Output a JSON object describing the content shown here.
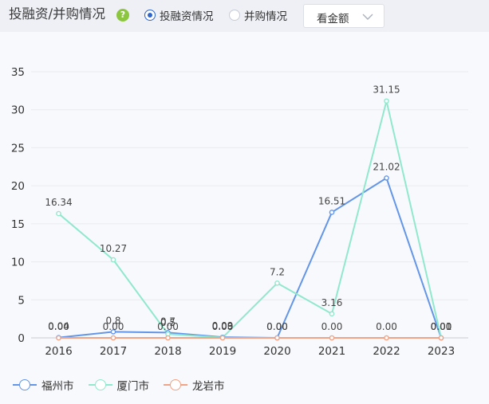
{
  "header": {
    "title": "投融资/并购情况",
    "help_icon": "question-circle-icon",
    "radios": [
      {
        "label": "投融资情况",
        "checked": true
      },
      {
        "label": "并购情况",
        "checked": false
      }
    ],
    "select": {
      "value": "看金额",
      "icon": "chevron-down-icon"
    }
  },
  "colors": {
    "福州市": "#6396e8",
    "厦门市": "#90e8cd",
    "龙岩市": "#f0a386"
  },
  "chart_data": {
    "type": "line",
    "categories": [
      "2016",
      "2017",
      "2018",
      "2019",
      "2020",
      "2021",
      "2022",
      "2023"
    ],
    "y_ticks": [
      "0",
      "5",
      "10",
      "15",
      "20",
      "25",
      "30",
      "35"
    ],
    "ylim": [
      0,
      35
    ],
    "grid": true,
    "legend_position": "bottom-left",
    "series": [
      {
        "name": "福州市",
        "values": [
          0.04,
          0.8,
          0.7,
          0.09,
          0,
          16.51,
          21.02,
          0
        ],
        "labels": [
          "0.04",
          "0.8",
          "0.7",
          "0.09",
          "0.00",
          "16.51",
          "21.02",
          "0.00"
        ]
      },
      {
        "name": "厦门市",
        "values": [
          16.34,
          10.27,
          0.5,
          0.03,
          7.2,
          3.16,
          31.15,
          0.01
        ],
        "labels": [
          "16.34",
          "10.27",
          "0.5",
          "0.03",
          "7.2",
          "3.16",
          "31.15",
          "0.01"
        ]
      },
      {
        "name": "龙岩市",
        "values": [
          0,
          0,
          0,
          0,
          0,
          0,
          0,
          0
        ],
        "labels": [
          "0.00",
          "0.00",
          "0.00",
          "0.00",
          "0.00",
          "0.00",
          "0.00",
          "0.00"
        ]
      }
    ]
  }
}
